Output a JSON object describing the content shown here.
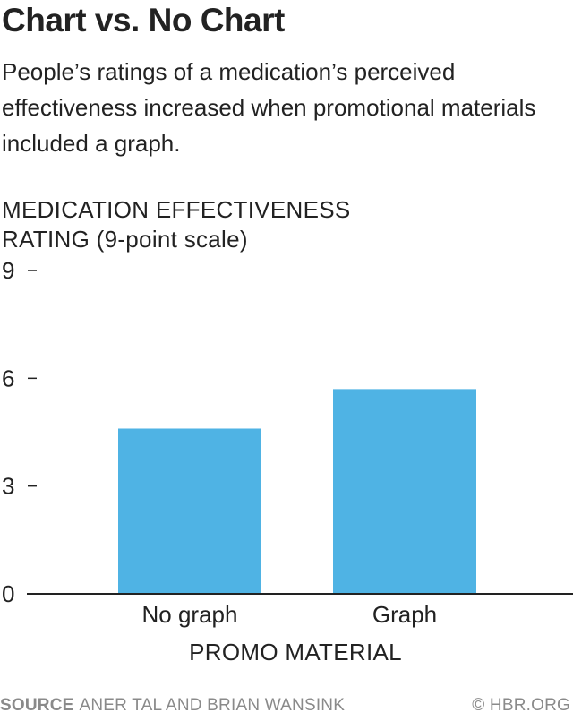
{
  "header": {
    "title": "Chart vs. No Chart",
    "subtitle": "People’s ratings of a medication’s perceived effectiveness increased when promotional materials included a graph."
  },
  "footer": {
    "source_label": "SOURCE",
    "source_text": "ANER TAL AND BRIAN WANSINK",
    "credit": "© HBR.ORG"
  },
  "colors": {
    "bar": "#4fb3e4",
    "axis": "#222222",
    "text": "#222222",
    "footer": "#8a8a8a"
  },
  "chart_data": {
    "type": "bar",
    "title": "Chart vs. No Chart",
    "ylabel": "MEDICATION EFFECTIVENESS RATING (9-point scale)",
    "xlabel": "PROMO MATERIAL",
    "categories": [
      "No graph",
      "Graph"
    ],
    "values": [
      4.6,
      5.7
    ],
    "ylim": [
      0,
      9
    ],
    "yticks": [
      0,
      3,
      6,
      9
    ],
    "grid": false
  }
}
